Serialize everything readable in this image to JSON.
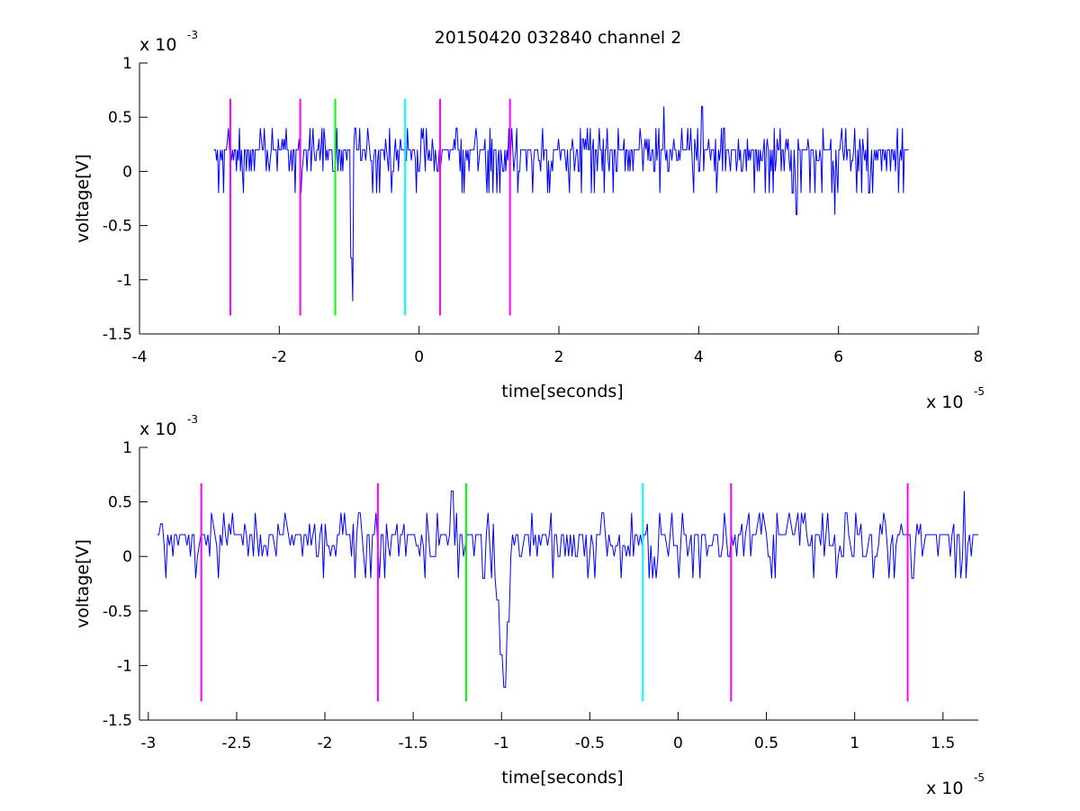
{
  "title": "20150420 032840 channel 2",
  "colors": {
    "signal": "#0000ff",
    "magenta": "#ff00ff",
    "green": "#00ff00",
    "cyan": "#00ffff",
    "axis": "#000000",
    "background": "#ffffff"
  },
  "chart_data": [
    {
      "type": "line",
      "xlabel": "time[seconds]",
      "ylabel": "voltage[V]",
      "x_multiplier": "x 10",
      "x_exponent": "-5",
      "y_multiplier": "x 10",
      "y_exponent": "-3",
      "xlim": [
        -4,
        8
      ],
      "ylim": [
        -1.5,
        1
      ],
      "xticks": [
        "-4",
        "-2",
        "0",
        "2",
        "4",
        "6",
        "8"
      ],
      "yticks": [
        "-1.5",
        "-1",
        "-0.5",
        "0",
        "0.5",
        "1"
      ],
      "grid": false,
      "signal": {
        "x_start": -2.94,
        "x_end": 7.0,
        "n": 700,
        "seed": 11,
        "spikes": [
          [
            -0.95,
            -1.2
          ],
          [
            -0.97,
            -0.8
          ],
          [
            3.5,
            0.6
          ],
          [
            4.05,
            0.6
          ],
          [
            5.4,
            -0.4
          ],
          [
            5.95,
            -0.4
          ]
        ]
      },
      "markers": [
        {
          "x": -2.7,
          "y": [
            -1.33,
            0.67
          ],
          "color": "magenta"
        },
        {
          "x": -1.7,
          "y": [
            -1.33,
            0.67
          ],
          "color": "magenta"
        },
        {
          "x": -1.2,
          "y": [
            -1.33,
            0.67
          ],
          "color": "green"
        },
        {
          "x": -0.2,
          "y": [
            -1.33,
            0.67
          ],
          "color": "cyan"
        },
        {
          "x": 0.3,
          "y": [
            -1.33,
            0.67
          ],
          "color": "magenta"
        },
        {
          "x": 1.3,
          "y": [
            -1.33,
            0.67
          ],
          "color": "magenta"
        }
      ]
    },
    {
      "type": "line",
      "xlabel": "time[seconds]",
      "ylabel": "voltage[V]",
      "x_multiplier": "x 10",
      "x_exponent": "-5",
      "y_multiplier": "x 10",
      "y_exponent": "-3",
      "xlim": [
        -3.05,
        1.7
      ],
      "ylim": [
        -1.5,
        1
      ],
      "xticks": [
        "-3",
        "-2.5",
        "-2",
        "-1.5",
        "-1",
        "-0.5",
        "0",
        "0.5",
        "1",
        "1.5"
      ],
      "yticks": [
        "-1.5",
        "-1",
        "-0.5",
        "0",
        "0.5",
        "1"
      ],
      "grid": false,
      "signal": {
        "x_start": -2.95,
        "x_end": 1.7,
        "n": 470,
        "seed": 23,
        "spikes": [
          [
            -0.98,
            -1.2
          ],
          [
            -1.0,
            -0.9
          ],
          [
            -1.02,
            -0.4
          ],
          [
            -0.96,
            -0.6
          ],
          [
            -1.28,
            0.6
          ],
          [
            1.62,
            0.6
          ]
        ]
      },
      "markers": [
        {
          "x": -2.7,
          "y": [
            -1.33,
            0.67
          ],
          "color": "magenta"
        },
        {
          "x": -1.7,
          "y": [
            -1.33,
            0.67
          ],
          "color": "magenta"
        },
        {
          "x": -1.2,
          "y": [
            -1.33,
            0.67
          ],
          "color": "green"
        },
        {
          "x": -0.2,
          "y": [
            -1.33,
            0.67
          ],
          "color": "cyan"
        },
        {
          "x": 0.3,
          "y": [
            -1.33,
            0.67
          ],
          "color": "magenta"
        },
        {
          "x": 1.3,
          "y": [
            -1.33,
            0.67
          ],
          "color": "magenta"
        }
      ]
    }
  ]
}
